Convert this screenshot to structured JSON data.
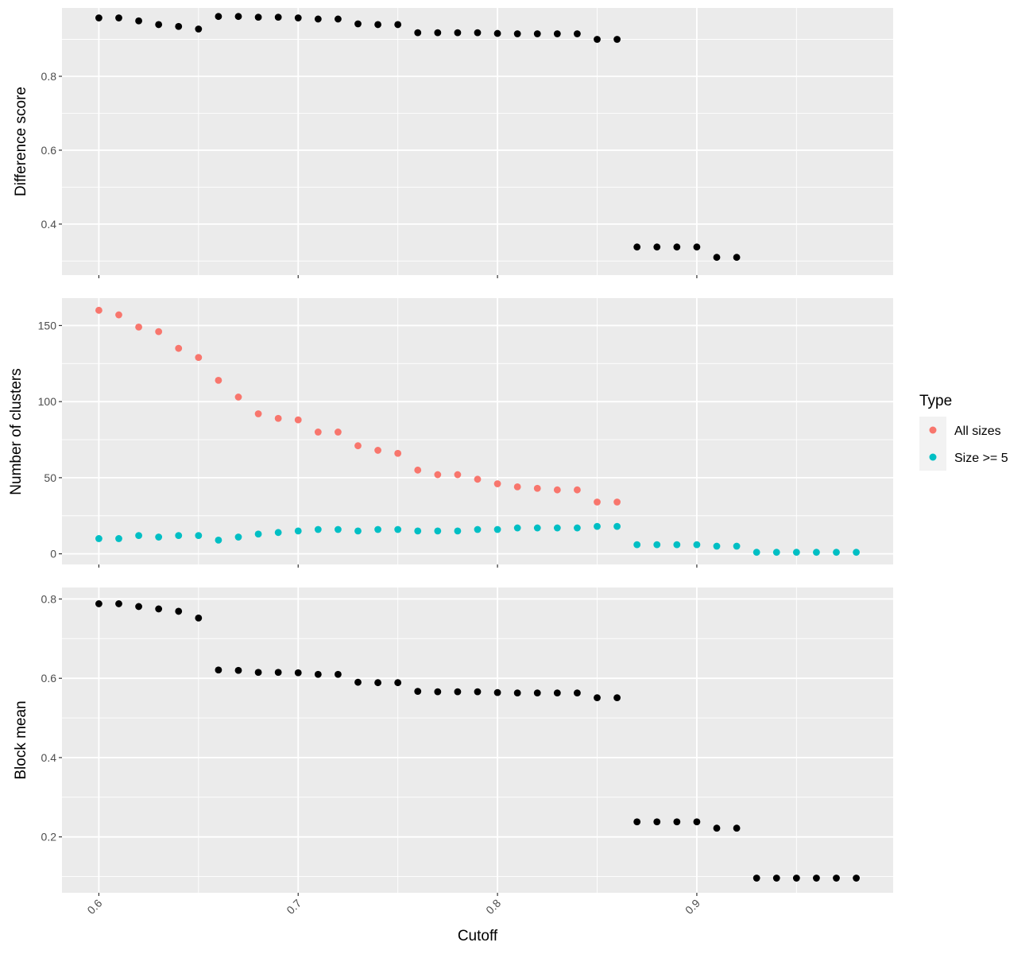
{
  "chart_data": {
    "type": "scatter",
    "x_label": "Cutoff",
    "x_ticks": [
      "0.6",
      "0.7",
      "0.8",
      "0.9"
    ],
    "x_range": [
      0.5815,
      0.9985
    ],
    "grid": true,
    "panels": [
      {
        "id": "difference-score",
        "ylabel": "Difference score",
        "y_ticks": [
          "0.4",
          "0.6",
          "0.8"
        ],
        "y_range": [
          0.262,
          0.985
        ],
        "series": [
          {
            "color": "#000000",
            "points": [
              [
                0.6,
                0.958
              ],
              [
                0.61,
                0.958
              ],
              [
                0.62,
                0.95
              ],
              [
                0.63,
                0.94
              ],
              [
                0.64,
                0.935
              ],
              [
                0.65,
                0.928
              ],
              [
                0.66,
                0.962
              ],
              [
                0.67,
                0.962
              ],
              [
                0.68,
                0.96
              ],
              [
                0.69,
                0.96
              ],
              [
                0.7,
                0.958
              ],
              [
                0.71,
                0.955
              ],
              [
                0.72,
                0.955
              ],
              [
                0.73,
                0.942
              ],
              [
                0.74,
                0.94
              ],
              [
                0.75,
                0.94
              ],
              [
                0.76,
                0.918
              ],
              [
                0.77,
                0.918
              ],
              [
                0.78,
                0.918
              ],
              [
                0.79,
                0.918
              ],
              [
                0.8,
                0.916
              ],
              [
                0.81,
                0.915
              ],
              [
                0.82,
                0.915
              ],
              [
                0.83,
                0.915
              ],
              [
                0.84,
                0.915
              ],
              [
                0.85,
                0.9
              ],
              [
                0.86,
                0.9
              ],
              [
                0.87,
                0.338
              ],
              [
                0.88,
                0.338
              ],
              [
                0.89,
                0.338
              ],
              [
                0.9,
                0.338
              ],
              [
                0.91,
                0.31
              ],
              [
                0.92,
                0.31
              ]
            ]
          }
        ]
      },
      {
        "id": "number-of-clusters",
        "ylabel": "Number of clusters",
        "y_ticks": [
          "0",
          "50",
          "100",
          "150"
        ],
        "y_range": [
          -7.0,
          168.0
        ],
        "series": [
          {
            "name": "All sizes",
            "color": "#F8766D",
            "points": [
              [
                0.6,
                160
              ],
              [
                0.61,
                157
              ],
              [
                0.62,
                149
              ],
              [
                0.63,
                146
              ],
              [
                0.64,
                135
              ],
              [
                0.65,
                129
              ],
              [
                0.66,
                114
              ],
              [
                0.67,
                103
              ],
              [
                0.68,
                92
              ],
              [
                0.69,
                89
              ],
              [
                0.7,
                88
              ],
              [
                0.71,
                80
              ],
              [
                0.72,
                80
              ],
              [
                0.73,
                71
              ],
              [
                0.74,
                68
              ],
              [
                0.75,
                66
              ],
              [
                0.76,
                55
              ],
              [
                0.77,
                52
              ],
              [
                0.78,
                52
              ],
              [
                0.79,
                49
              ],
              [
                0.8,
                46
              ],
              [
                0.81,
                44
              ],
              [
                0.82,
                43
              ],
              [
                0.83,
                42
              ],
              [
                0.84,
                42
              ],
              [
                0.85,
                34
              ],
              [
                0.86,
                34
              ]
            ]
          },
          {
            "name": "Size >= 5",
            "color": "#00BFC4",
            "points": [
              [
                0.6,
                10
              ],
              [
                0.61,
                10
              ],
              [
                0.62,
                12
              ],
              [
                0.63,
                11
              ],
              [
                0.64,
                12
              ],
              [
                0.65,
                12
              ],
              [
                0.66,
                9
              ],
              [
                0.67,
                11
              ],
              [
                0.68,
                13
              ],
              [
                0.69,
                14
              ],
              [
                0.7,
                15
              ],
              [
                0.71,
                16
              ],
              [
                0.72,
                16
              ],
              [
                0.73,
                15
              ],
              [
                0.74,
                16
              ],
              [
                0.75,
                16
              ],
              [
                0.76,
                15
              ],
              [
                0.77,
                15
              ],
              [
                0.78,
                15
              ],
              [
                0.79,
                16
              ],
              [
                0.8,
                16
              ],
              [
                0.81,
                17
              ],
              [
                0.82,
                17
              ],
              [
                0.83,
                17
              ],
              [
                0.84,
                17
              ],
              [
                0.85,
                18
              ],
              [
                0.86,
                18
              ],
              [
                0.87,
                6
              ],
              [
                0.88,
                6
              ],
              [
                0.89,
                6
              ],
              [
                0.9,
                6
              ],
              [
                0.91,
                5
              ],
              [
                0.92,
                5
              ],
              [
                0.93,
                1
              ],
              [
                0.94,
                1
              ],
              [
                0.95,
                1
              ],
              [
                0.96,
                1
              ],
              [
                0.97,
                1
              ],
              [
                0.98,
                1
              ]
            ]
          }
        ]
      },
      {
        "id": "block-mean",
        "ylabel": "Block mean",
        "y_ticks": [
          "0.2",
          "0.4",
          "0.6",
          "0.8"
        ],
        "y_range": [
          0.059,
          0.829
        ],
        "series": [
          {
            "color": "#000000",
            "points": [
              [
                0.6,
                0.788
              ],
              [
                0.61,
                0.788
              ],
              [
                0.62,
                0.781
              ],
              [
                0.63,
                0.775
              ],
              [
                0.64,
                0.769
              ],
              [
                0.65,
                0.752
              ],
              [
                0.66,
                0.621
              ],
              [
                0.67,
                0.62
              ],
              [
                0.68,
                0.615
              ],
              [
                0.69,
                0.615
              ],
              [
                0.7,
                0.614
              ],
              [
                0.71,
                0.61
              ],
              [
                0.72,
                0.61
              ],
              [
                0.73,
                0.59
              ],
              [
                0.74,
                0.589
              ],
              [
                0.75,
                0.589
              ],
              [
                0.76,
                0.567
              ],
              [
                0.77,
                0.566
              ],
              [
                0.78,
                0.566
              ],
              [
                0.79,
                0.566
              ],
              [
                0.8,
                0.564
              ],
              [
                0.81,
                0.563
              ],
              [
                0.82,
                0.563
              ],
              [
                0.83,
                0.563
              ],
              [
                0.84,
                0.563
              ],
              [
                0.85,
                0.551
              ],
              [
                0.86,
                0.551
              ],
              [
                0.87,
                0.238
              ],
              [
                0.88,
                0.238
              ],
              [
                0.89,
                0.238
              ],
              [
                0.9,
                0.238
              ],
              [
                0.91,
                0.222
              ],
              [
                0.92,
                0.222
              ],
              [
                0.93,
                0.096
              ],
              [
                0.94,
                0.096
              ],
              [
                0.95,
                0.096
              ],
              [
                0.96,
                0.096
              ],
              [
                0.97,
                0.096
              ],
              [
                0.98,
                0.096
              ]
            ]
          }
        ]
      }
    ],
    "legend": {
      "title": "Type",
      "position": "right",
      "entries": [
        {
          "label": "All sizes",
          "color": "#F8766D"
        },
        {
          "label": "Size >= 5",
          "color": "#00BFC4"
        }
      ]
    }
  }
}
